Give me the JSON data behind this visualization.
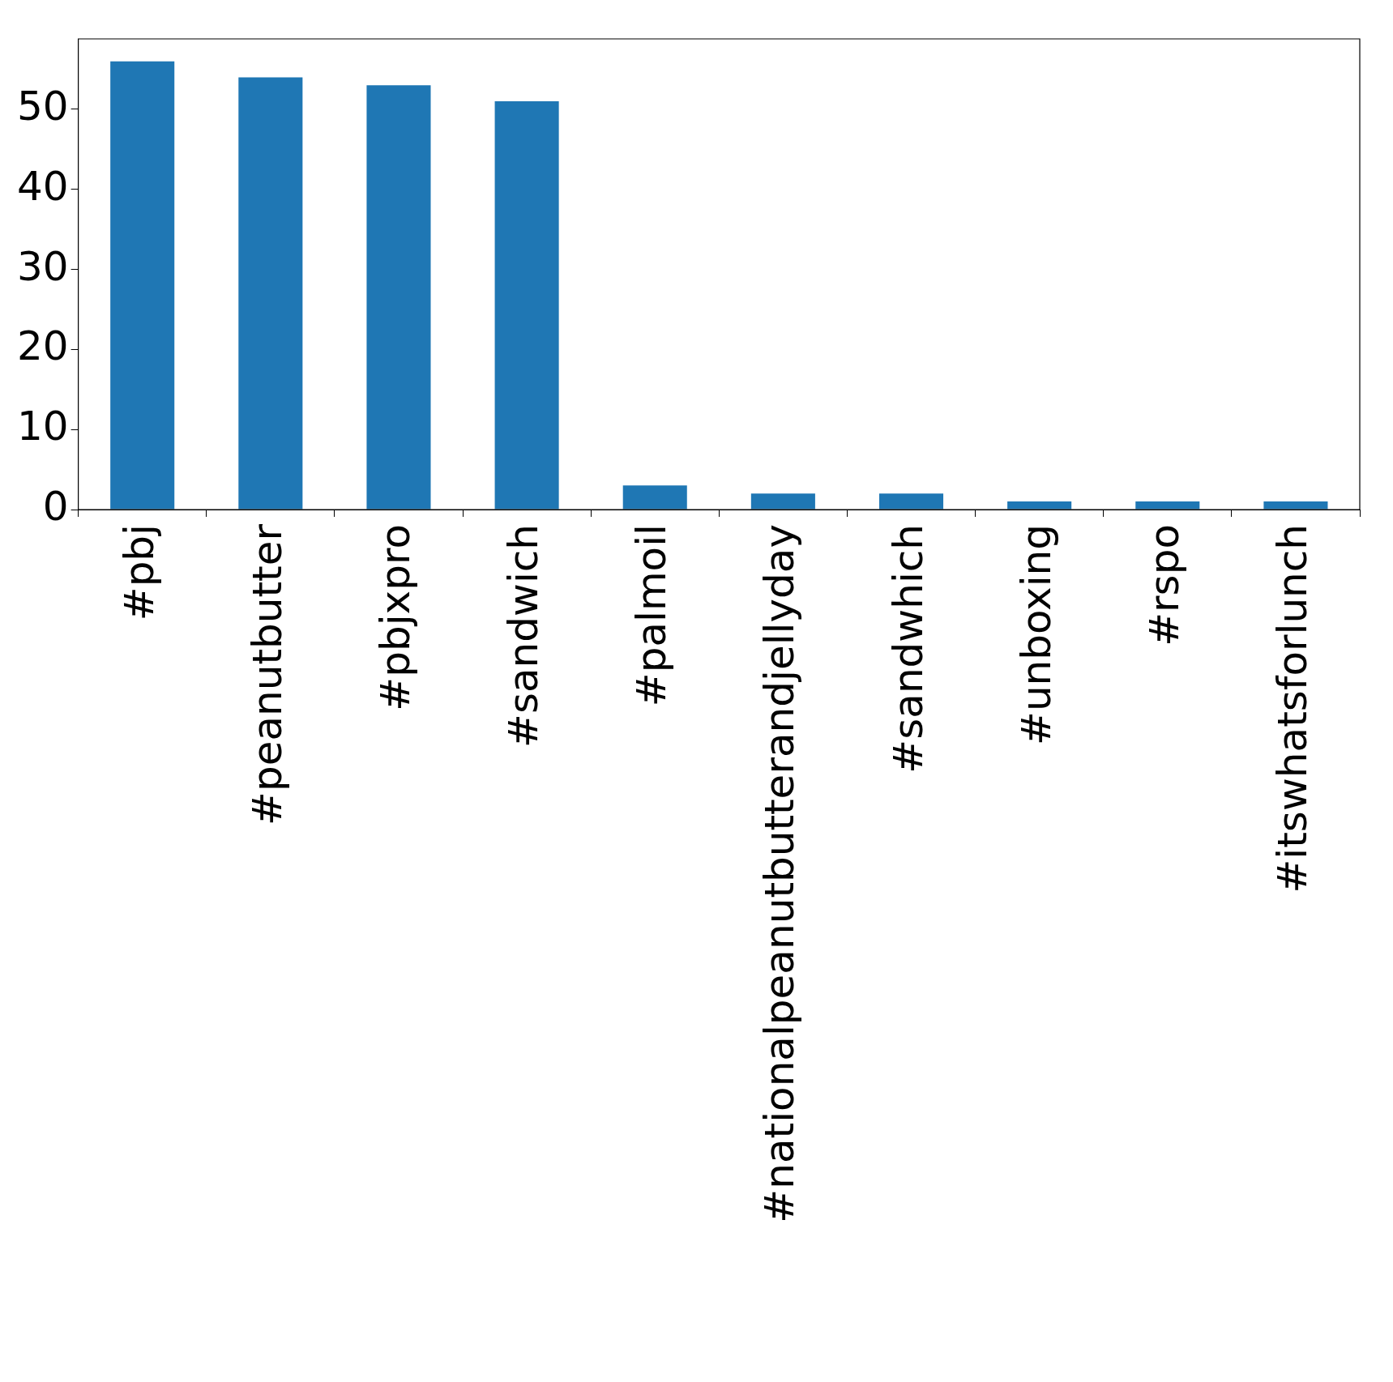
{
  "chart_data": {
    "type": "bar",
    "categories": [
      "#pbj",
      "#peanutbutter",
      "#pbjxpro",
      "#sandwich",
      "#palmoil",
      "#nationalpeanutbutterandjellyday",
      "#sandwhich",
      "#unboxing",
      "#rspo",
      "#itswhatsforlunch"
    ],
    "values": [
      56,
      54,
      53,
      51,
      3,
      2,
      2,
      1,
      1,
      1
    ],
    "color": "#1f77b4",
    "ylim": [
      0,
      58.8
    ],
    "yticks": [
      0,
      10,
      20,
      30,
      40,
      50
    ],
    "grid": false,
    "legend": false
  }
}
